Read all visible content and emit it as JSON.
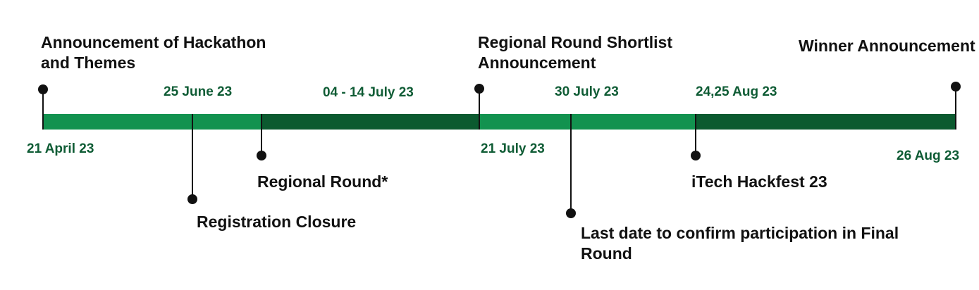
{
  "colors": {
    "segment_light": "#12924f",
    "segment_dark": "#0b5a2f",
    "date_text": "#0f5c35",
    "event_text": "#111111",
    "markers": "#111111"
  },
  "segments": [
    {
      "shade": "light"
    },
    {
      "shade": "dark"
    },
    {
      "shade": "light"
    },
    {
      "shade": "dark"
    }
  ],
  "dates": {
    "d1": "21 April 23",
    "d2": "25 June 23",
    "d3": "04 - 14 July 23",
    "d4": "21 July 23",
    "d5": "30 July 23",
    "d6": "24,25 Aug 23",
    "d7": "26 Aug 23"
  },
  "events": {
    "e1": "Announcement of Hackathon and Themes",
    "e2": "Registration Closure",
    "e3": "Regional Round*",
    "e4": "Regional Round Shortlist Announcement",
    "e5": "Last date to confirm participation in Final Round",
    "e6": "iTech Hackfest 23",
    "e7": "Winner Announcement"
  }
}
